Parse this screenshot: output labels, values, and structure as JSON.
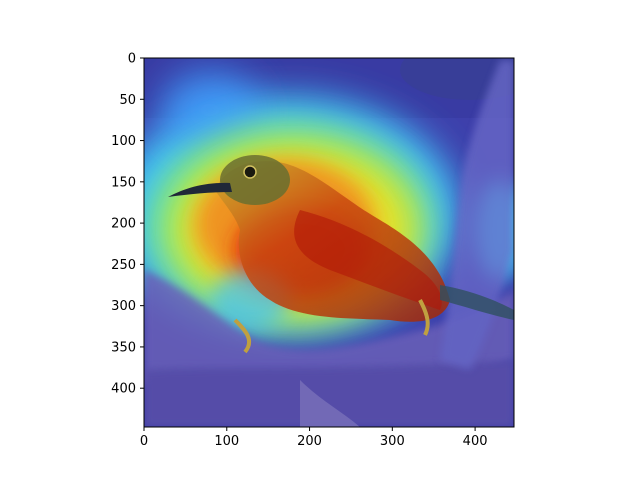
{
  "figure": {
    "image_description": "Bird perched on a branch with a jet-colormap saliency heatmap overlaid; hottest region over the bird's breast and wing.",
    "x_axis": {
      "range": [
        0,
        447
      ],
      "ticks": [
        {
          "value": 0,
          "label": "0"
        },
        {
          "value": 100,
          "label": "100"
        },
        {
          "value": 200,
          "label": "200"
        },
        {
          "value": 300,
          "label": "300"
        },
        {
          "value": 400,
          "label": "400"
        }
      ]
    },
    "y_axis": {
      "range": [
        0,
        447
      ],
      "inverted": true,
      "ticks": [
        {
          "value": 0,
          "label": "0"
        },
        {
          "value": 50,
          "label": "50"
        },
        {
          "value": 100,
          "label": "100"
        },
        {
          "value": 150,
          "label": "150"
        },
        {
          "value": 200,
          "label": "200"
        },
        {
          "value": 250,
          "label": "250"
        },
        {
          "value": 300,
          "label": "300"
        },
        {
          "value": 350,
          "label": "350"
        },
        {
          "value": 400,
          "label": "400"
        }
      ]
    },
    "colors": {
      "heatmap_low": "#2b2bd9",
      "heatmap_mid": "#40e0ff",
      "heatmap_yellow": "#f0e020",
      "heatmap_high": "#e02010",
      "bird_body": "#c84010",
      "branch": "#7a6fb0",
      "background_dark": "#3a3f70"
    }
  }
}
